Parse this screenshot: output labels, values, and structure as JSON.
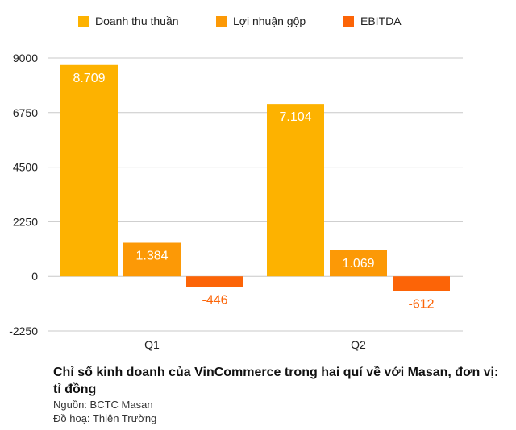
{
  "colors": {
    "revenue": "#FDB200",
    "gross_profit": "#FC9906",
    "ebitda": "#FC6407",
    "grid": "#C8C8C8",
    "label_inside": "#FFFFFF"
  },
  "chart_data": {
    "type": "bar",
    "categories": [
      "Q1",
      "Q2"
    ],
    "series": [
      {
        "name": "Doanh thu thuần",
        "values": [
          8709,
          7104
        ],
        "labels": [
          "8.709",
          "7.104"
        ]
      },
      {
        "name": "Lợi nhuận gộp",
        "values": [
          1384,
          1069
        ],
        "labels": [
          "1.384",
          "1.069"
        ]
      },
      {
        "name": "EBITDA",
        "values": [
          -446,
          -612
        ],
        "labels": [
          "-446",
          "-612"
        ]
      }
    ],
    "y_ticks": [
      "9000",
      "6750",
      "4500",
      "2250",
      "0",
      "-2250"
    ],
    "ylim": [
      -2250,
      9000
    ],
    "grid": true,
    "legend_position": "top"
  },
  "caption": {
    "title": "Chỉ số kinh doanh của VinCommerce trong hai quí về với Masan, đơn vị: tỉ đồng",
    "source": "Nguồn: BCTC Masan",
    "graphics": "Đồ hoạ: Thiên Trường"
  }
}
